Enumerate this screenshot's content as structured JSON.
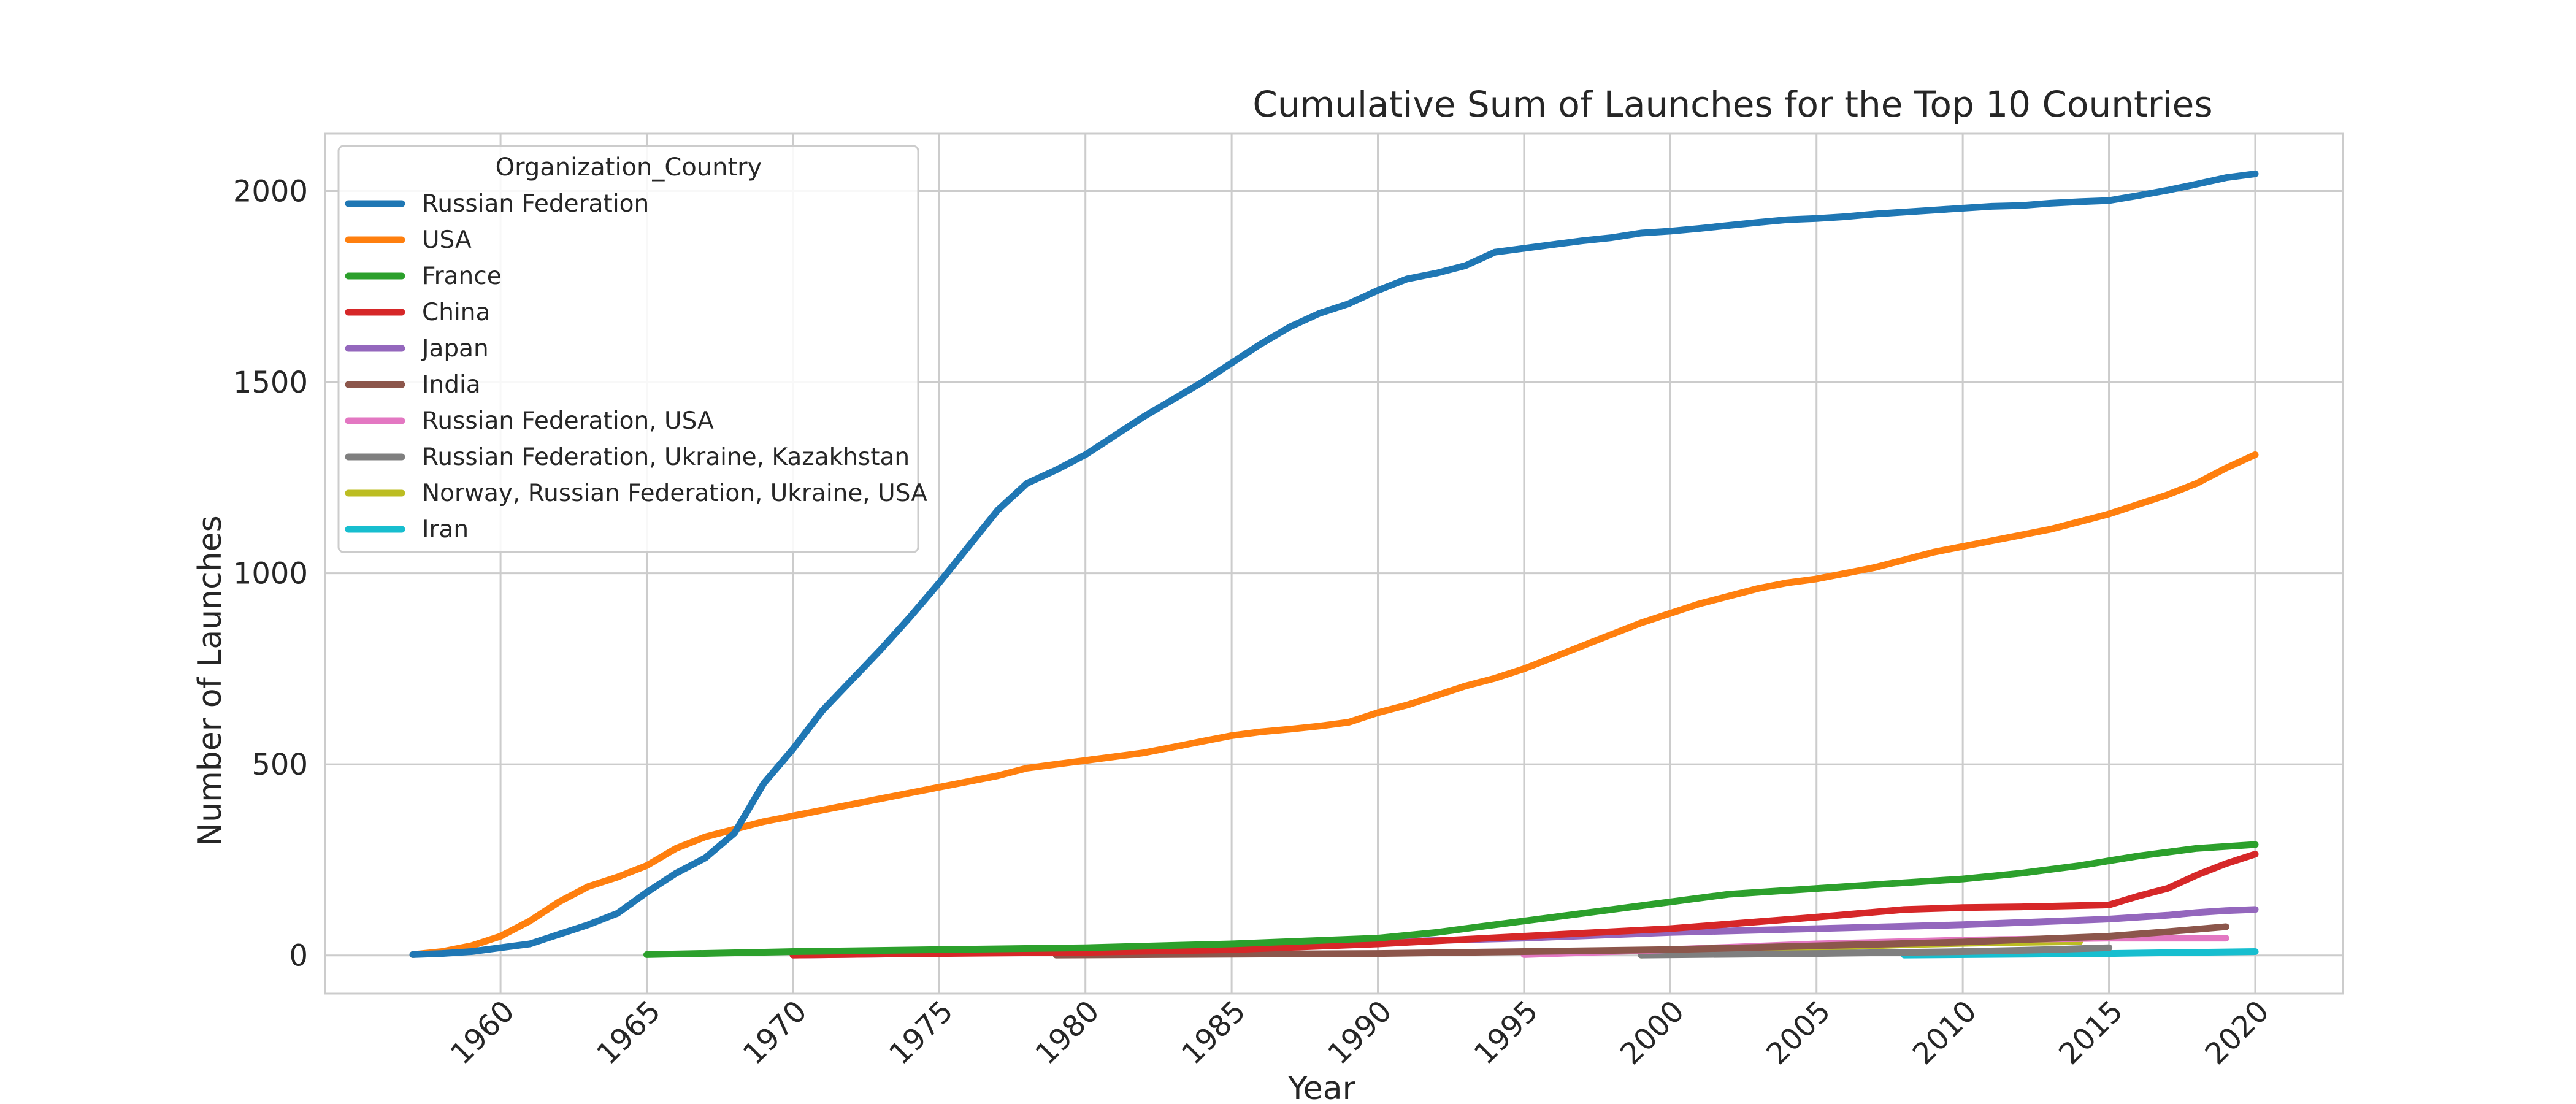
{
  "chart_data": {
    "type": "line",
    "title": "Cumulative Sum of Launches for the Top 10 Countries",
    "xlabel": "Year",
    "ylabel": "Number of Launches",
    "xlim": [
      1954,
      2023
    ],
    "ylim": [
      -100,
      2150
    ],
    "xticks": [
      "1960",
      "1965",
      "1970",
      "1975",
      "1980",
      "1985",
      "1990",
      "1995",
      "2000",
      "2005",
      "2010",
      "2015",
      "2020"
    ],
    "yticks": [
      "0",
      "500",
      "1000",
      "1500",
      "2000"
    ],
    "grid": true,
    "legend": {
      "title": "Organization_Country",
      "placement": "upper-left"
    },
    "series": [
      {
        "name": "Russian Federation",
        "color": "#1f77b4",
        "x": [
          1957,
          1958,
          1959,
          1960,
          1961,
          1962,
          1963,
          1964,
          1965,
          1966,
          1967,
          1968,
          1969,
          1970,
          1971,
          1972,
          1973,
          1974,
          1975,
          1976,
          1977,
          1978,
          1979,
          1980,
          1981,
          1982,
          1983,
          1984,
          1985,
          1986,
          1987,
          1988,
          1989,
          1990,
          1991,
          1992,
          1993,
          1994,
          1995,
          1996,
          1997,
          1998,
          1999,
          2000,
          2001,
          2002,
          2003,
          2004,
          2005,
          2006,
          2007,
          2008,
          2009,
          2010,
          2011,
          2012,
          2013,
          2014,
          2015,
          2016,
          2017,
          2018,
          2019,
          2020
        ],
        "y": [
          2,
          5,
          10,
          20,
          30,
          55,
          80,
          110,
          165,
          215,
          255,
          320,
          450,
          540,
          640,
          720,
          800,
          885,
          975,
          1070,
          1165,
          1235,
          1270,
          1310,
          1360,
          1410,
          1455,
          1500,
          1550,
          1600,
          1645,
          1680,
          1705,
          1740,
          1770,
          1785,
          1805,
          1840,
          1850,
          1860,
          1870,
          1878,
          1890,
          1895,
          1902,
          1910,
          1918,
          1925,
          1928,
          1933,
          1940,
          1945,
          1950,
          1955,
          1960,
          1962,
          1968,
          1972,
          1975,
          1988,
          2002,
          2018,
          2035,
          2045
        ]
      },
      {
        "name": "USA",
        "color": "#ff7f0e",
        "x": [
          1957,
          1958,
          1959,
          1960,
          1961,
          1962,
          1963,
          1964,
          1965,
          1966,
          1967,
          1968,
          1969,
          1970,
          1971,
          1972,
          1973,
          1974,
          1975,
          1976,
          1977,
          1978,
          1979,
          1980,
          1981,
          1982,
          1983,
          1984,
          1985,
          1986,
          1987,
          1988,
          1989,
          1990,
          1991,
          1992,
          1993,
          1994,
          1995,
          1996,
          1997,
          1998,
          1999,
          2000,
          2001,
          2002,
          2003,
          2004,
          2005,
          2006,
          2007,
          2008,
          2009,
          2010,
          2011,
          2012,
          2013,
          2014,
          2015,
          2016,
          2017,
          2018,
          2019,
          2020
        ],
        "y": [
          2,
          10,
          25,
          50,
          90,
          140,
          180,
          205,
          235,
          280,
          310,
          330,
          350,
          365,
          380,
          395,
          410,
          425,
          440,
          455,
          470,
          490,
          500,
          510,
          520,
          530,
          545,
          560,
          575,
          585,
          592,
          600,
          610,
          635,
          655,
          680,
          705,
          725,
          750,
          780,
          810,
          840,
          870,
          895,
          920,
          940,
          960,
          975,
          985,
          1000,
          1015,
          1035,
          1055,
          1070,
          1085,
          1100,
          1115,
          1135,
          1155,
          1180,
          1205,
          1235,
          1275,
          1310
        ]
      },
      {
        "name": "France",
        "color": "#2ca02c",
        "x": [
          1965,
          1970,
          1975,
          1980,
          1985,
          1990,
          1992,
          1994,
          1996,
          1998,
          2000,
          2002,
          2004,
          2006,
          2008,
          2010,
          2012,
          2014,
          2016,
          2018,
          2020
        ],
        "y": [
          2,
          10,
          15,
          20,
          30,
          45,
          60,
          80,
          100,
          120,
          140,
          160,
          170,
          180,
          190,
          200,
          215,
          235,
          260,
          280,
          290
        ]
      },
      {
        "name": "China",
        "color": "#d62728",
        "x": [
          1970,
          1975,
          1980,
          1985,
          1990,
          1995,
          2000,
          2005,
          2008,
          2010,
          2012,
          2015,
          2016,
          2017,
          2018,
          2019,
          2020
        ],
        "y": [
          1,
          5,
          8,
          15,
          30,
          50,
          70,
          100,
          120,
          125,
          127,
          132,
          155,
          175,
          210,
          240,
          265
        ]
      },
      {
        "name": "Japan",
        "color": "#9467bd",
        "x": [
          1970,
          1975,
          1980,
          1985,
          1990,
          1995,
          2000,
          2005,
          2010,
          2015,
          2017,
          2018,
          2019,
          2020
        ],
        "y": [
          1,
          5,
          15,
          25,
          35,
          45,
          60,
          70,
          80,
          95,
          105,
          112,
          117,
          120
        ]
      },
      {
        "name": "India",
        "color": "#8c564b",
        "x": [
          1979,
          1985,
          1990,
          1995,
          2000,
          2005,
          2010,
          2015,
          2017,
          2019
        ],
        "y": [
          1,
          3,
          5,
          10,
          15,
          25,
          35,
          50,
          62,
          75
        ]
      },
      {
        "name": "Russian Federation, USA",
        "color": "#e377c2",
        "x": [
          1995,
          2000,
          2005,
          2010,
          2015,
          2019
        ],
        "y": [
          2,
          15,
          30,
          40,
          45,
          45
        ]
      },
      {
        "name": "Russian Federation, Ukraine, Kazakhstan",
        "color": "#7f7f7f",
        "x": [
          1999,
          2005,
          2010,
          2013,
          2015
        ],
        "y": [
          1,
          5,
          10,
          15,
          20
        ]
      },
      {
        "name": "Norway, Russian Federation, Ukraine, USA",
        "color": "#bcbd22",
        "x": [
          1999,
          2002,
          2005,
          2008,
          2011,
          2014
        ],
        "y": [
          1,
          10,
          20,
          28,
          33,
          36
        ]
      },
      {
        "name": "Iran",
        "color": "#17becf",
        "x": [
          2008,
          2012,
          2015,
          2018,
          2020
        ],
        "y": [
          1,
          3,
          5,
          8,
          10
        ]
      }
    ]
  }
}
